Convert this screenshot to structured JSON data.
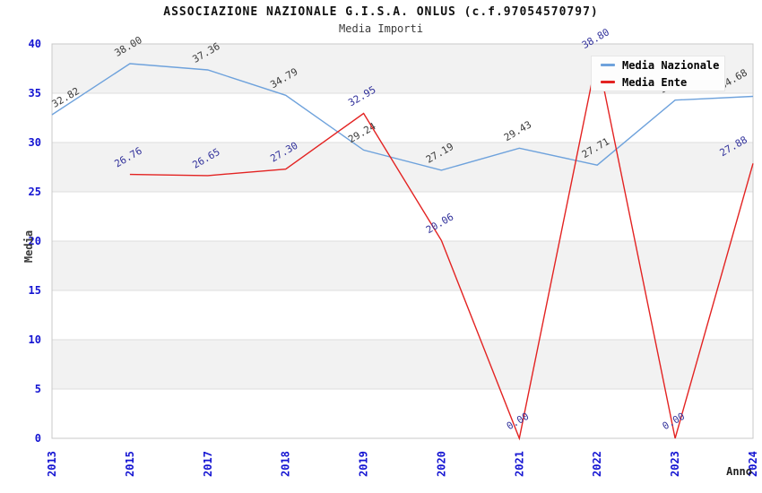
{
  "chart_data": {
    "type": "line",
    "title": "ASSOCIAZIONE NAZIONALE G.I.S.A. ONLUS (c.f.97054570797)",
    "subtitle": "Media Importi",
    "xlabel": "Anno",
    "ylabel": "Media",
    "ylim": [
      0,
      40
    ],
    "yticks": [
      0,
      5,
      10,
      15,
      20,
      25,
      30,
      35,
      40
    ],
    "grid": "alternating-horizontal-bands",
    "legend_position": "top-right",
    "categories": [
      "2013",
      "2015",
      "2017",
      "2018",
      "2019",
      "2020",
      "2021",
      "2022",
      "2023",
      "2024"
    ],
    "series": [
      {
        "name": "Media Nazionale",
        "color": "#6ea2dc",
        "label_color": "#3b3b3b",
        "values": [
          32.82,
          38.0,
          37.36,
          34.79,
          29.24,
          27.19,
          29.43,
          27.71,
          34.3,
          34.68
        ]
      },
      {
        "name": "Media Ente",
        "color": "#e32322",
        "label_color": "#32329b",
        "values": [
          null,
          26.76,
          26.65,
          27.3,
          32.95,
          20.06,
          0.0,
          38.8,
          0.0,
          27.88
        ]
      }
    ],
    "colors": {
      "tick_label": "#1414d2",
      "band_fill": "#f2f2f2",
      "grid_line": "#dedede",
      "plot_border": "#c9c9c9"
    }
  }
}
